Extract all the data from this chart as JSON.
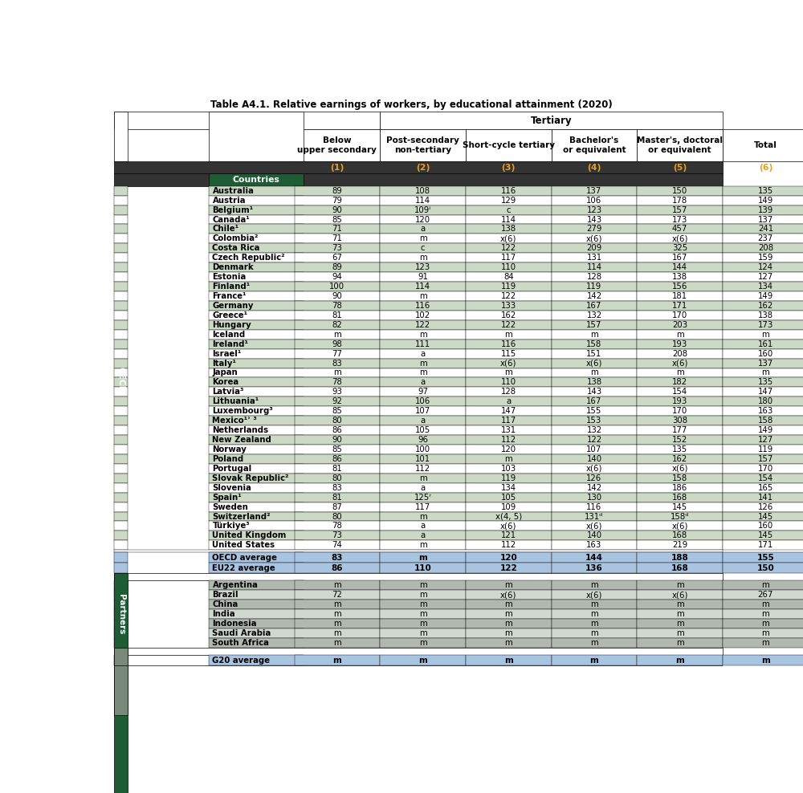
{
  "title": "Table A4.1. Relative earnings of workers, by educational attainment (2020)",
  "col_headers": [
    "Below\nupper secondary",
    "Post-secondary\nnon-tertiary",
    "Short-cycle tertiary",
    "Bachelor's\nor equivalent",
    "Master's, doctoral\nor equivalent",
    "Total"
  ],
  "col_numbers": [
    "(1)",
    "(2)",
    "(3)",
    "(4)",
    "(5)",
    "(6)"
  ],
  "tertiary_label": "Tertiary",
  "oecd_rows": [
    [
      "Australia",
      "89",
      "108",
      "116",
      "137",
      "150",
      "135"
    ],
    [
      "Austria",
      "79",
      "114",
      "129",
      "106",
      "178",
      "149"
    ],
    [
      "Belgium¹",
      "90",
      "109ⁱ",
      "c",
      "123",
      "157",
      "139"
    ],
    [
      "Canada¹",
      "85",
      "120",
      "114",
      "143",
      "173",
      "137"
    ],
    [
      "Chile¹",
      "71",
      "a",
      "138",
      "279",
      "457",
      "241"
    ],
    [
      "Colombia²",
      "71",
      "m",
      "x(6)",
      "x(6)",
      "x(6)",
      "237"
    ],
    [
      "Costa Rica",
      "73",
      "c",
      "122",
      "209",
      "325",
      "208"
    ],
    [
      "Czech Republic²",
      "67",
      "m",
      "117",
      "131",
      "167",
      "159"
    ],
    [
      "Denmark",
      "89",
      "123",
      "110",
      "114",
      "144",
      "124"
    ],
    [
      "Estonia",
      "94",
      "91",
      "84",
      "128",
      "138",
      "127"
    ],
    [
      "Finland¹",
      "100",
      "114",
      "119",
      "119",
      "156",
      "134"
    ],
    [
      "France¹",
      "90",
      "m",
      "122",
      "142",
      "181",
      "149"
    ],
    [
      "Germany",
      "78",
      "116",
      "133",
      "167",
      "171",
      "162"
    ],
    [
      "Greece¹",
      "81",
      "102",
      "162",
      "132",
      "170",
      "138"
    ],
    [
      "Hungary",
      "82",
      "122",
      "122",
      "157",
      "203",
      "173"
    ],
    [
      "Iceland",
      "m",
      "m",
      "m",
      "m",
      "m",
      "m"
    ],
    [
      "Ireland¹",
      "98",
      "111",
      "116",
      "158",
      "193",
      "161"
    ],
    [
      "Israel¹",
      "77",
      "a",
      "115",
      "151",
      "208",
      "160"
    ],
    [
      "Italy¹",
      "83",
      "m",
      "x(6)",
      "x(6)",
      "x(6)",
      "137"
    ],
    [
      "Japan",
      "m",
      "m",
      "m",
      "m",
      "m",
      "m"
    ],
    [
      "Korea",
      "78",
      "a",
      "110",
      "138",
      "182",
      "135"
    ],
    [
      "Latvia³",
      "93",
      "97",
      "128",
      "143",
      "154",
      "147"
    ],
    [
      "Lithuania¹",
      "92",
      "106",
      "a",
      "167",
      "193",
      "180"
    ],
    [
      "Luxembourg³",
      "85",
      "107",
      "147",
      "155",
      "170",
      "163"
    ],
    [
      "Mexico¹ʾ ³",
      "80",
      "a",
      "117",
      "153",
      "308",
      "158"
    ],
    [
      "Netherlands",
      "86",
      "105",
      "131",
      "132",
      "177",
      "149"
    ],
    [
      "New Zealand",
      "90",
      "96",
      "112",
      "122",
      "152",
      "127"
    ],
    [
      "Norway",
      "85",
      "100",
      "120",
      "107",
      "135",
      "119"
    ],
    [
      "Poland",
      "86",
      "101",
      "m",
      "140",
      "162",
      "157"
    ],
    [
      "Portugal",
      "81",
      "112",
      "103",
      "x(6)",
      "x(6)",
      "170"
    ],
    [
      "Slovak Republic²",
      "80",
      "m",
      "119",
      "126",
      "158",
      "154"
    ],
    [
      "Slovenia",
      "83",
      "a",
      "134",
      "142",
      "186",
      "165"
    ],
    [
      "Spain¹",
      "81",
      "125ʳ",
      "105",
      "130",
      "168",
      "141"
    ],
    [
      "Sweden",
      "87",
      "117",
      "109",
      "116",
      "145",
      "126"
    ],
    [
      "Switzerland²",
      "80",
      "m",
      "x(4, 5)",
      "131ᵈ",
      "158ᵈ",
      "145"
    ],
    [
      "Türkiye³",
      "78",
      "a",
      "x(6)",
      "x(6)",
      "x(6)",
      "160"
    ],
    [
      "United Kingdom",
      "73",
      "a",
      "121",
      "140",
      "168",
      "145"
    ],
    [
      "United States",
      "74",
      "m",
      "112",
      "163",
      "219",
      "171"
    ]
  ],
  "oecd_avg_rows": [
    [
      "OECD average",
      "83",
      "m",
      "120",
      "144",
      "188",
      "155"
    ],
    [
      "EU22 average",
      "86",
      "110",
      "122",
      "136",
      "168",
      "150"
    ]
  ],
  "partners_rows": [
    [
      "Argentina",
      "m",
      "m",
      "m",
      "m",
      "m",
      "m"
    ],
    [
      "Brazil",
      "72",
      "m",
      "x(6)",
      "x(6)",
      "x(6)",
      "267"
    ],
    [
      "China",
      "m",
      "m",
      "m",
      "m",
      "m",
      "m"
    ],
    [
      "India",
      "m",
      "m",
      "m",
      "m",
      "m",
      "m"
    ],
    [
      "Indonesia",
      "m",
      "m",
      "m",
      "m",
      "m",
      "m"
    ],
    [
      "Saudi Arabia",
      "m",
      "m",
      "m",
      "m",
      "m",
      "m"
    ],
    [
      "South Africa",
      "m",
      "m",
      "m",
      "m",
      "m",
      "m"
    ]
  ],
  "g20_avg_rows": [
    [
      "G20 average",
      "m",
      "m",
      "m",
      "m",
      "m",
      "m"
    ]
  ],
  "colors": {
    "dark_header_bg": "#333333",
    "dark_header_text": "#e8a020",
    "countries_green_bg": "#1e5c35",
    "oecd_even_row": "#ccd9c5",
    "oecd_odd_row": "#ffffff",
    "oecd_avg_bg": "#a8c4e0",
    "partners_dark_row": "#b0b8b0",
    "partners_light_row": "#d0d8d0",
    "g20_avg_bg": "#a8c4e0",
    "side_oecd_bg": "#1e5c35",
    "side_partners_bg": "#7a8a7a",
    "white": "#ffffff",
    "black": "#000000",
    "text_dark": "#111111"
  }
}
